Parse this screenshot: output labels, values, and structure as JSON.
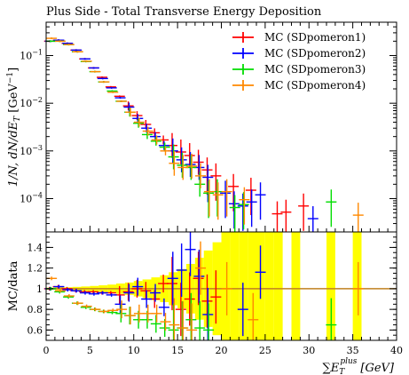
{
  "chart_data": {
    "type": "scatter",
    "title": "Plus Side - Total Transverse Energy Deposition",
    "main_panel": {
      "ylabel": "1/N, dN/dE_T [GeV^-1]",
      "yscale": "log",
      "ylim": [
        2e-05,
        0.5
      ],
      "yticks": [
        {
          "value": 0.1,
          "base": "10",
          "exp": "−1"
        },
        {
          "value": 0.01,
          "base": "10",
          "exp": "−2"
        },
        {
          "value": 0.001,
          "base": "10",
          "exp": "−3"
        },
        {
          "value": 0.0001,
          "base": "10",
          "exp": "−4"
        }
      ]
    },
    "ratio_panel": {
      "ylabel": "MC/data",
      "ylim": [
        0.5,
        1.55
      ],
      "yticks": [
        "0.6",
        "0.8",
        "1",
        "1.2",
        "1.4"
      ]
    },
    "xlabel": "∑E_T^plus [GeV]",
    "xlabel_parts": {
      "sym": "∑",
      "E": "E",
      "sub": "T",
      "sup": "plus",
      "unit": "[GeV]"
    },
    "xlim": [
      0,
      40
    ],
    "xticks": [
      "0",
      "5",
      "10",
      "15",
      "20",
      "25",
      "30",
      "35",
      "40"
    ],
    "series": [
      {
        "name": "MC (SDpomeron1)",
        "color": "#ff0000",
        "points": [
          [
            0.5,
            0.2
          ],
          [
            1.5,
            0.21
          ],
          [
            2.5,
            0.18
          ],
          [
            3.5,
            0.13
          ],
          [
            4.5,
            0.085
          ],
          [
            5.5,
            0.055
          ],
          [
            6.5,
            0.035
          ],
          [
            7.5,
            0.022
          ],
          [
            8.5,
            0.014
          ],
          [
            9.5,
            0.0088
          ],
          [
            10.5,
            0.0055
          ],
          [
            11.5,
            0.0036
          ],
          [
            12.5,
            0.0024
          ],
          [
            13.5,
            0.0017
          ],
          [
            14.5,
            0.0013
          ],
          [
            15.5,
            0.00095
          ],
          [
            16.5,
            0.0008
          ],
          [
            17.5,
            0.00058
          ],
          [
            18.5,
            0.0004
          ],
          [
            19.5,
            0.0003
          ],
          [
            21.5,
            0.00018
          ],
          [
            23.5,
            0.00015
          ],
          [
            26.5,
            4.8e-05
          ],
          [
            27.5,
            5.2e-05
          ],
          [
            29.5,
            7e-05
          ]
        ]
      },
      {
        "name": "MC (SDpomeron2)",
        "color": "#0000ff",
        "points": [
          [
            0.5,
            0.2
          ],
          [
            1.5,
            0.21
          ],
          [
            2.5,
            0.18
          ],
          [
            3.5,
            0.13
          ],
          [
            4.5,
            0.085
          ],
          [
            5.5,
            0.055
          ],
          [
            6.5,
            0.033
          ],
          [
            7.5,
            0.021
          ],
          [
            8.5,
            0.013
          ],
          [
            9.5,
            0.0083
          ],
          [
            10.5,
            0.0048
          ],
          [
            11.5,
            0.003
          ],
          [
            12.5,
            0.002
          ],
          [
            13.5,
            0.0013
          ],
          [
            14.5,
            0.001
          ],
          [
            15.5,
            0.00065
          ],
          [
            16.5,
            0.00052
          ],
          [
            17.5,
            0.00045
          ],
          [
            18.5,
            0.00028
          ],
          [
            20.5,
            0.00013
          ],
          [
            21.5,
            7.8e-05
          ],
          [
            22.5,
            7e-05
          ],
          [
            23.5,
            8.5e-05
          ],
          [
            24.5,
            0.00012
          ],
          [
            30.5,
            3.8e-05
          ]
        ]
      },
      {
        "name": "MC (SDpomeron3)",
        "color": "#00dd00",
        "points": [
          [
            0.5,
            0.2
          ],
          [
            1.5,
            0.2
          ],
          [
            2.5,
            0.17
          ],
          [
            3.5,
            0.12
          ],
          [
            4.5,
            0.075
          ],
          [
            5.5,
            0.046
          ],
          [
            6.5,
            0.028
          ],
          [
            7.5,
            0.018
          ],
          [
            8.5,
            0.011
          ],
          [
            9.5,
            0.0065
          ],
          [
            10.5,
            0.0038
          ],
          [
            11.5,
            0.0022
          ],
          [
            12.5,
            0.0016
          ],
          [
            13.5,
            0.0012
          ],
          [
            14.5,
            0.00075
          ],
          [
            15.5,
            0.0005
          ],
          [
            16.5,
            0.00045
          ],
          [
            17.5,
            0.0002
          ],
          [
            18.5,
            0.00013
          ],
          [
            19.5,
            0.00014
          ],
          [
            21.5,
            6.5e-05
          ],
          [
            22.5,
            7.5e-05
          ],
          [
            32.5,
            8.5e-05
          ]
        ]
      },
      {
        "name": "MC (SDpomeron4)",
        "color": "#ff8800",
        "points": [
          [
            0.5,
            0.23
          ],
          [
            1.5,
            0.2
          ],
          [
            2.5,
            0.17
          ],
          [
            3.5,
            0.12
          ],
          [
            4.5,
            0.076
          ],
          [
            5.5,
            0.046
          ],
          [
            6.5,
            0.028
          ],
          [
            7.5,
            0.017
          ],
          [
            8.5,
            0.011
          ],
          [
            9.5,
            0.0065
          ],
          [
            10.5,
            0.004
          ],
          [
            11.5,
            0.0026
          ],
          [
            12.5,
            0.0017
          ],
          [
            13.5,
            0.001
          ],
          [
            14.5,
            0.00055
          ],
          [
            15.5,
            0.00045
          ],
          [
            16.5,
            0.00048
          ],
          [
            17.5,
            0.0003
          ],
          [
            18.5,
            0.00014
          ],
          [
            19.5,
            0.00012
          ],
          [
            20.5,
            0.00014
          ],
          [
            22.5,
            9.5e-05
          ],
          [
            35.5,
            4.5e-05
          ]
        ]
      }
    ],
    "ratios": [
      {
        "name": "MC (SDpomeron1)",
        "color": "#ff0000",
        "points": [
          [
            0.5,
            1.0
          ],
          [
            1.5,
            1.02
          ],
          [
            2.5,
            1.0
          ],
          [
            3.5,
            0.98
          ],
          [
            4.5,
            0.97
          ],
          [
            5.5,
            0.97
          ],
          [
            6.5,
            0.96
          ],
          [
            7.5,
            0.96
          ],
          [
            8.5,
            0.94
          ],
          [
            9.5,
            0.97
          ],
          [
            10.5,
            1.0
          ],
          [
            11.5,
            0.98
          ],
          [
            12.5,
            0.9
          ],
          [
            13.5,
            1.05
          ],
          [
            14.5,
            1.05
          ],
          [
            15.5,
            0.8
          ],
          [
            16.5,
            0.9
          ],
          [
            17.5,
            1.1
          ],
          [
            18.5,
            0.88
          ],
          [
            19.5,
            0.92
          ]
        ]
      },
      {
        "name": "MC (SDpomeron2)",
        "color": "#0000ff",
        "points": [
          [
            0.5,
            1.0
          ],
          [
            1.5,
            1.02
          ],
          [
            2.5,
            0.99
          ],
          [
            3.5,
            0.98
          ],
          [
            4.5,
            0.96
          ],
          [
            5.5,
            0.95
          ],
          [
            6.5,
            0.96
          ],
          [
            7.5,
            0.94
          ],
          [
            8.5,
            0.85
          ],
          [
            9.5,
            0.96
          ],
          [
            10.5,
            1.02
          ],
          [
            11.5,
            0.9
          ],
          [
            12.5,
            0.96
          ],
          [
            13.5,
            0.82
          ],
          [
            14.5,
            1.1
          ],
          [
            15.5,
            1.18
          ],
          [
            16.5,
            1.38
          ],
          [
            17.5,
            1.12
          ],
          [
            18.5,
            0.75
          ],
          [
            22.5,
            0.8
          ],
          [
            24.5,
            1.16
          ]
        ]
      },
      {
        "name": "MC (SDpomeron3)",
        "color": "#00dd00",
        "points": [
          [
            0.5,
            1.0
          ],
          [
            1.5,
            0.97
          ],
          [
            2.5,
            0.92
          ],
          [
            3.5,
            0.86
          ],
          [
            4.5,
            0.82
          ],
          [
            5.5,
            0.8
          ],
          [
            6.5,
            0.78
          ],
          [
            7.5,
            0.77
          ],
          [
            8.5,
            0.76
          ],
          [
            9.5,
            0.74
          ],
          [
            10.5,
            0.7
          ],
          [
            11.5,
            0.7
          ],
          [
            12.5,
            0.66
          ],
          [
            13.5,
            0.62
          ],
          [
            14.5,
            0.6
          ],
          [
            15.5,
            0.62
          ],
          [
            16.5,
            0.7
          ],
          [
            17.5,
            0.62
          ],
          [
            18.5,
            0.6
          ],
          [
            32.5,
            0.65
          ]
        ]
      },
      {
        "name": "MC (SDpomeron4)",
        "color": "#ff8800",
        "points": [
          [
            0.5,
            1.1
          ],
          [
            1.5,
            0.98
          ],
          [
            2.5,
            0.93
          ],
          [
            3.5,
            0.86
          ],
          [
            4.5,
            0.83
          ],
          [
            5.5,
            0.8
          ],
          [
            6.5,
            0.78
          ],
          [
            7.5,
            0.79
          ],
          [
            8.5,
            0.8
          ],
          [
            9.5,
            0.74
          ],
          [
            10.5,
            0.76
          ],
          [
            11.5,
            0.76
          ],
          [
            12.5,
            0.76
          ],
          [
            13.5,
            0.68
          ],
          [
            14.5,
            0.65
          ],
          [
            15.5,
            0.62
          ],
          [
            16.5,
            0.6
          ],
          [
            17.5,
            1.2
          ],
          [
            20.5,
            1.0
          ],
          [
            23.5,
            0.7
          ],
          [
            35.5,
            1.0
          ]
        ]
      }
    ],
    "data_uncertainty_band": [
      [
        0,
        1,
        0.01
      ],
      [
        1,
        2,
        0.012
      ],
      [
        2,
        3,
        0.014
      ],
      [
        3,
        4,
        0.018
      ],
      [
        4,
        5,
        0.022
      ],
      [
        5,
        6,
        0.027
      ],
      [
        6,
        7,
        0.033
      ],
      [
        7,
        8,
        0.04
      ],
      [
        8,
        9,
        0.05
      ],
      [
        9,
        10,
        0.06
      ],
      [
        10,
        11,
        0.075
      ],
      [
        11,
        12,
        0.09
      ],
      [
        12,
        13,
        0.11
      ],
      [
        13,
        14,
        0.13
      ],
      [
        14,
        15,
        0.16
      ],
      [
        15,
        16,
        0.19
      ],
      [
        16,
        17,
        0.24
      ],
      [
        17,
        18,
        0.3
      ],
      [
        18,
        19,
        0.37
      ],
      [
        19,
        20,
        0.45
      ],
      [
        20,
        21,
        0.55
      ],
      [
        21,
        22,
        0.7
      ],
      [
        22,
        23,
        0.8
      ],
      [
        23,
        24,
        0.8
      ],
      [
        24,
        25,
        0.8
      ],
      [
        25,
        26,
        0.8
      ],
      [
        26,
        27,
        0.8
      ],
      [
        28,
        29,
        0.8
      ],
      [
        32,
        33,
        0.8
      ],
      [
        35,
        36,
        0.8
      ]
    ]
  }
}
